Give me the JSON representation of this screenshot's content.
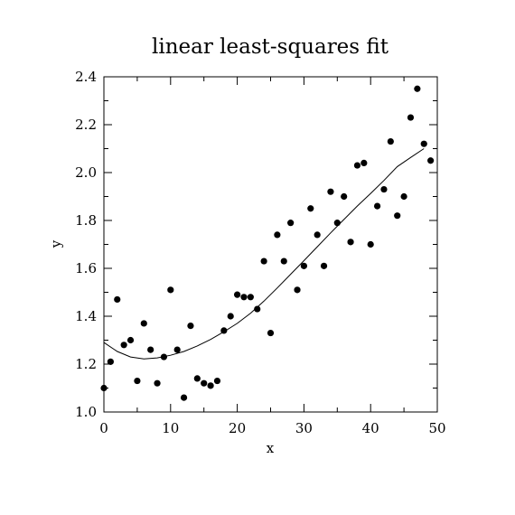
{
  "chart_data": {
    "type": "scatter",
    "title": "linear least-squares fit",
    "xlabel": "x",
    "ylabel": "y",
    "xlim": [
      0,
      50
    ],
    "ylim": [
      1.0,
      2.4
    ],
    "x_ticks": [
      "0",
      "10",
      "20",
      "30",
      "40",
      "50"
    ],
    "y_ticks": [
      "1.0",
      "1.2",
      "1.4",
      "1.6",
      "1.8",
      "2.0",
      "2.2",
      "2.4"
    ],
    "grid": false,
    "series": [
      {
        "kind": "points",
        "x": [
          0,
          1,
          2,
          3,
          4,
          5,
          6,
          7,
          8,
          9,
          10,
          11,
          12,
          13,
          14,
          15,
          16,
          17,
          18,
          19,
          20,
          21,
          22,
          23,
          24,
          25,
          26,
          27,
          28,
          29,
          30,
          31,
          32,
          33,
          34,
          35,
          36,
          37,
          38,
          39,
          40,
          41,
          42,
          43,
          44,
          45,
          46,
          47,
          48,
          49
        ],
        "y": [
          1.1,
          1.21,
          1.47,
          1.28,
          1.3,
          1.13,
          1.37,
          1.26,
          1.12,
          1.23,
          1.51,
          1.26,
          1.06,
          1.36,
          1.14,
          1.12,
          1.11,
          1.13,
          1.34,
          1.4,
          1.49,
          1.48,
          1.48,
          1.43,
          1.63,
          1.33,
          1.74,
          1.63,
          1.79,
          1.51,
          1.61,
          1.85,
          1.74,
          1.61,
          1.92,
          1.79,
          1.9,
          1.71,
          2.03,
          2.04,
          1.7,
          1.86,
          1.93,
          2.13,
          1.82,
          1.9,
          2.23,
          2.35,
          2.12,
          2.05
        ]
      },
      {
        "kind": "line",
        "x": [
          0,
          2,
          4,
          6,
          8,
          10,
          12,
          14,
          16,
          18,
          20,
          22,
          24,
          26,
          28,
          30,
          32,
          34,
          36,
          38,
          40,
          42,
          44,
          46,
          48
        ],
        "y": [
          1.29,
          1.253,
          1.23,
          1.222,
          1.226,
          1.237,
          1.253,
          1.276,
          1.303,
          1.335,
          1.37,
          1.413,
          1.463,
          1.518,
          1.575,
          1.632,
          1.69,
          1.748,
          1.804,
          1.86,
          1.913,
          1.967,
          2.025,
          2.063,
          2.1
        ]
      }
    ],
    "colors": {
      "marker": "#000000",
      "line": "#000000",
      "axis": "#000000"
    }
  }
}
